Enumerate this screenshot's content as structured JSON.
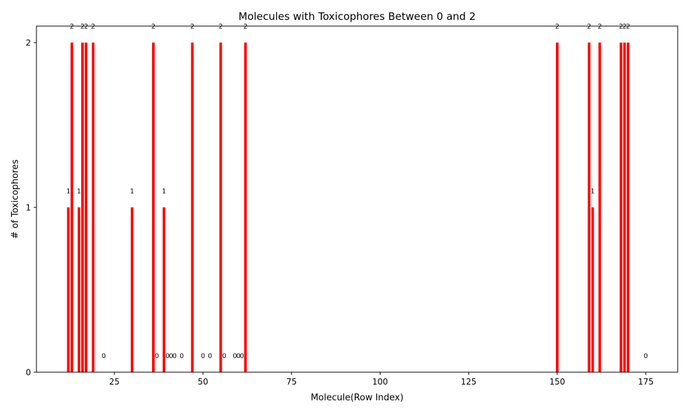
{
  "chart_data": {
    "type": "bar",
    "title": "Molecules with Toxicophores Between 0 and 2",
    "xlabel": "Molecule(Row Index)",
    "ylabel": "# of Toxicophores",
    "xlim": [
      3,
      184
    ],
    "ylim": [
      0,
      2.1
    ],
    "xticks": [
      25,
      50,
      75,
      100,
      125,
      150,
      175
    ],
    "yticks": [
      0,
      1,
      2
    ],
    "bar_color": "#ff0000",
    "grid": false,
    "legend": "none",
    "x": [
      12,
      13,
      15,
      16,
      17,
      19,
      22,
      30,
      36,
      37,
      39,
      40,
      41,
      42,
      44,
      47,
      50,
      52,
      55,
      56,
      59,
      60,
      61,
      62,
      150,
      159,
      160,
      162,
      168,
      169,
      170,
      175
    ],
    "values": [
      1,
      2,
      1,
      2,
      2,
      2,
      0,
      1,
      2,
      0,
      1,
      0,
      0,
      0,
      0,
      2,
      0,
      0,
      2,
      0,
      0,
      0,
      0,
      2,
      2,
      2,
      1,
      2,
      2,
      2,
      2,
      0
    ]
  }
}
